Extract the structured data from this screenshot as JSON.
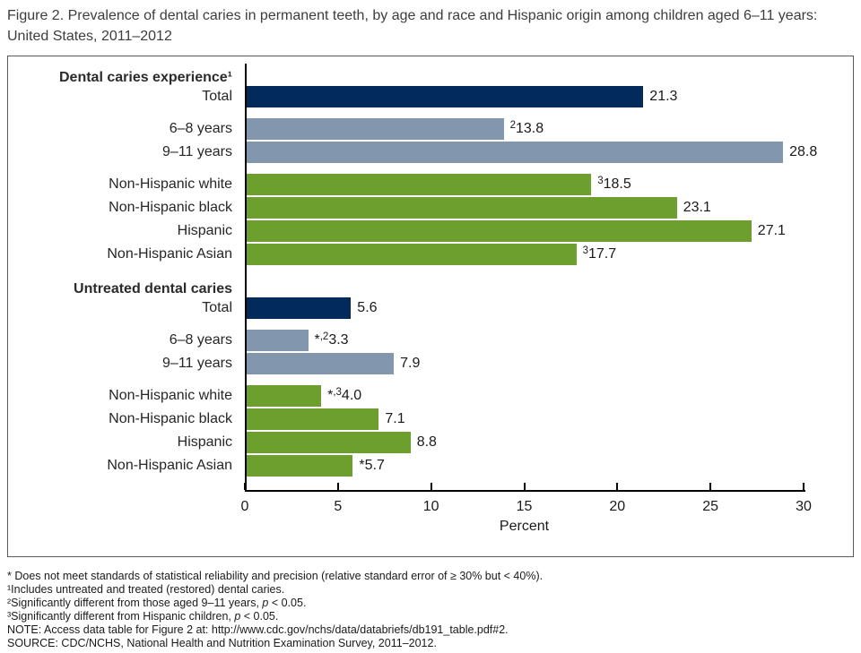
{
  "chart_data": {
    "type": "bar",
    "orientation": "horizontal",
    "title": "Figure 2. Prevalence of dental caries in permanent teeth, by age and race and Hispanic origin among children aged 6–11 years: United States, 2011–2012",
    "xlabel": "Percent",
    "xlim": [
      0,
      30
    ],
    "xticks": [
      0,
      5,
      10,
      15,
      20,
      25,
      30
    ],
    "grid": false,
    "legend": "none",
    "colors": {
      "navy": "#022B5C",
      "bluegray": "#8297AD",
      "green": "#6D9F2F"
    },
    "rows": [
      {
        "type": "header",
        "label": "Dental caries experience¹"
      },
      {
        "type": "bar",
        "label": "Total",
        "value": 21.3,
        "color": "navy",
        "value_label": [
          {
            "t": "21.3"
          }
        ]
      },
      {
        "type": "gap"
      },
      {
        "type": "bar",
        "label": "6–8 years",
        "value": 13.8,
        "color": "bluegray",
        "value_label": [
          {
            "t": "2",
            "sup": true
          },
          {
            "t": "13.8"
          }
        ]
      },
      {
        "type": "bar",
        "label": "9–11 years",
        "value": 28.8,
        "color": "bluegray",
        "value_label": [
          {
            "t": "28.8"
          }
        ]
      },
      {
        "type": "gap"
      },
      {
        "type": "bar",
        "label": "Non-Hispanic white",
        "value": 18.5,
        "color": "green",
        "value_label": [
          {
            "t": "3",
            "sup": true
          },
          {
            "t": "18.5"
          }
        ]
      },
      {
        "type": "bar",
        "label": "Non-Hispanic black",
        "value": 23.1,
        "color": "green",
        "value_label": [
          {
            "t": "23.1"
          }
        ]
      },
      {
        "type": "bar",
        "label": "Hispanic",
        "value": 27.1,
        "color": "green",
        "value_label": [
          {
            "t": "27.1"
          }
        ]
      },
      {
        "type": "bar",
        "label": "Non-Hispanic Asian",
        "value": 17.7,
        "color": "green",
        "value_label": [
          {
            "t": "3",
            "sup": true
          },
          {
            "t": "17.7"
          }
        ]
      },
      {
        "type": "gap"
      },
      {
        "type": "header",
        "label": "Untreated dental caries"
      },
      {
        "type": "bar",
        "label": "Total",
        "value": 5.6,
        "color": "navy",
        "value_label": [
          {
            "t": "5.6"
          }
        ]
      },
      {
        "type": "gap"
      },
      {
        "type": "bar",
        "label": "6–8 years",
        "value": 3.3,
        "color": "bluegray",
        "value_label": [
          {
            "t": "*"
          },
          {
            "t": ",2",
            "sup": true
          },
          {
            "t": "3.3"
          }
        ]
      },
      {
        "type": "bar",
        "label": "9–11 years",
        "value": 7.9,
        "color": "bluegray",
        "value_label": [
          {
            "t": "7.9"
          }
        ]
      },
      {
        "type": "gap"
      },
      {
        "type": "bar",
        "label": "Non-Hispanic white",
        "value": 4.0,
        "color": "green",
        "value_label": [
          {
            "t": "*"
          },
          {
            "t": ",3",
            "sup": true
          },
          {
            "t": "4.0"
          }
        ]
      },
      {
        "type": "bar",
        "label": "Non-Hispanic black",
        "value": 7.1,
        "color": "green",
        "value_label": [
          {
            "t": "7.1"
          }
        ]
      },
      {
        "type": "bar",
        "label": "Hispanic",
        "value": 8.8,
        "color": "green",
        "value_label": [
          {
            "t": "8.8"
          }
        ]
      },
      {
        "type": "bar",
        "label": "Non-Hispanic Asian",
        "value": 5.7,
        "color": "green",
        "value_label": [
          {
            "t": "*"
          },
          {
            "t": "5.7"
          }
        ]
      }
    ]
  },
  "footnotes": [
    [
      {
        "t": "* Does not meet standards of statistical reliability and precision (relative standard error of ≥ 30% but < 40%)."
      }
    ],
    [
      {
        "t": "¹Includes untreated and treated (restored) dental caries."
      }
    ],
    [
      {
        "t": "²Significantly different from those aged 9–11 years, "
      },
      {
        "t": "p",
        "italic": true
      },
      {
        "t": " < 0.05."
      }
    ],
    [
      {
        "t": "³Significantly different from Hispanic children, "
      },
      {
        "t": "p",
        "italic": true
      },
      {
        "t": " < 0.05."
      }
    ],
    [
      {
        "t": "NOTE: Access data table for Figure 2 at: http://www.cdc.gov/nchs/data/databriefs/db191_table.pdf#2."
      }
    ],
    [
      {
        "t": "SOURCE: CDC/NCHS, National Health and Nutrition Examination Survey, 2011–2012."
      }
    ]
  ]
}
